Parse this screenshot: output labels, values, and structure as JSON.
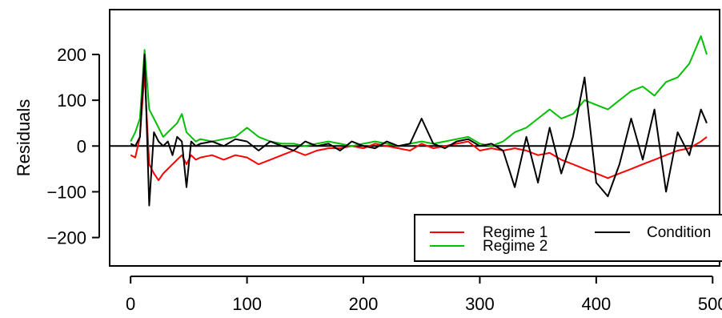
{
  "chart_data": {
    "type": "line",
    "title": "",
    "xlabel": "",
    "ylabel": "Residuals",
    "xlim": [
      -18,
      506
    ],
    "ylim": [
      -262,
      298
    ],
    "xticks": [
      0,
      100,
      200,
      300,
      400,
      500
    ],
    "yticks": [
      -200,
      -100,
      0,
      100,
      200
    ],
    "xtick_labels": [
      "0",
      "100",
      "200",
      "300",
      "400",
      "500"
    ],
    "ytick_labels": [
      "−200",
      "−100",
      "0",
      "100",
      "200"
    ],
    "zero_line": true,
    "grid": false,
    "legend_position": "bottom-right",
    "series": [
      {
        "name": "Regime 1",
        "color": "#ff0000",
        "x": [
          0,
          4,
          8,
          12,
          16,
          20,
          24,
          28,
          32,
          36,
          40,
          44,
          48,
          52,
          56,
          60,
          70,
          80,
          90,
          100,
          110,
          120,
          130,
          140,
          150,
          160,
          170,
          180,
          190,
          200,
          210,
          220,
          230,
          240,
          250,
          260,
          270,
          280,
          290,
          300,
          310,
          320,
          330,
          340,
          350,
          360,
          370,
          380,
          390,
          400,
          410,
          420,
          430,
          440,
          450,
          460,
          470,
          480,
          490,
          495
        ],
        "values": [
          -20,
          -25,
          20,
          160,
          -40,
          -60,
          -75,
          -60,
          -50,
          -40,
          -30,
          -20,
          -40,
          -20,
          -30,
          -25,
          -20,
          -30,
          -20,
          -25,
          -40,
          -30,
          -20,
          -10,
          -20,
          -10,
          -5,
          -5,
          0,
          -5,
          5,
          0,
          -5,
          -10,
          5,
          -5,
          0,
          5,
          10,
          -10,
          -5,
          -10,
          -5,
          -10,
          -20,
          -15,
          -30,
          -40,
          -50,
          -60,
          -70,
          -60,
          -50,
          -40,
          -30,
          -20,
          -10,
          -5,
          10,
          20
        ]
      },
      {
        "name": "Regime 2",
        "color": "#00c000",
        "x": [
          0,
          4,
          8,
          12,
          16,
          20,
          24,
          28,
          32,
          36,
          40,
          44,
          48,
          52,
          56,
          60,
          70,
          80,
          90,
          100,
          110,
          120,
          130,
          140,
          150,
          160,
          170,
          180,
          190,
          200,
          210,
          220,
          230,
          240,
          250,
          260,
          270,
          280,
          290,
          300,
          310,
          320,
          330,
          340,
          350,
          360,
          370,
          380,
          390,
          400,
          410,
          420,
          430,
          440,
          450,
          460,
          470,
          480,
          490,
          495
        ],
        "values": [
          10,
          30,
          60,
          210,
          80,
          60,
          40,
          20,
          30,
          40,
          50,
          70,
          30,
          20,
          10,
          15,
          10,
          15,
          20,
          40,
          20,
          10,
          5,
          5,
          0,
          5,
          10,
          5,
          0,
          5,
          10,
          5,
          0,
          5,
          10,
          5,
          10,
          15,
          20,
          5,
          0,
          10,
          30,
          40,
          60,
          80,
          60,
          70,
          100,
          90,
          80,
          100,
          120,
          130,
          110,
          140,
          150,
          180,
          240,
          200
        ]
      },
      {
        "name": "Condition",
        "color": "#000000",
        "x": [
          0,
          4,
          8,
          12,
          16,
          20,
          24,
          28,
          32,
          36,
          40,
          44,
          48,
          52,
          56,
          60,
          70,
          80,
          90,
          100,
          110,
          120,
          130,
          140,
          150,
          160,
          170,
          180,
          190,
          200,
          210,
          220,
          230,
          240,
          250,
          260,
          270,
          280,
          290,
          300,
          310,
          320,
          330,
          340,
          350,
          360,
          370,
          380,
          390,
          400,
          410,
          420,
          430,
          440,
          450,
          460,
          470,
          480,
          490,
          495
        ],
        "values": [
          5,
          0,
          20,
          200,
          -130,
          30,
          10,
          0,
          10,
          -20,
          20,
          10,
          -90,
          10,
          0,
          5,
          10,
          0,
          15,
          10,
          -10,
          10,
          0,
          -10,
          10,
          0,
          5,
          -10,
          10,
          0,
          -5,
          10,
          0,
          5,
          60,
          5,
          -5,
          10,
          15,
          0,
          5,
          -10,
          -90,
          20,
          -80,
          40,
          -60,
          20,
          150,
          -80,
          -110,
          -40,
          60,
          -30,
          80,
          -100,
          30,
          -20,
          80,
          50
        ]
      }
    ]
  }
}
